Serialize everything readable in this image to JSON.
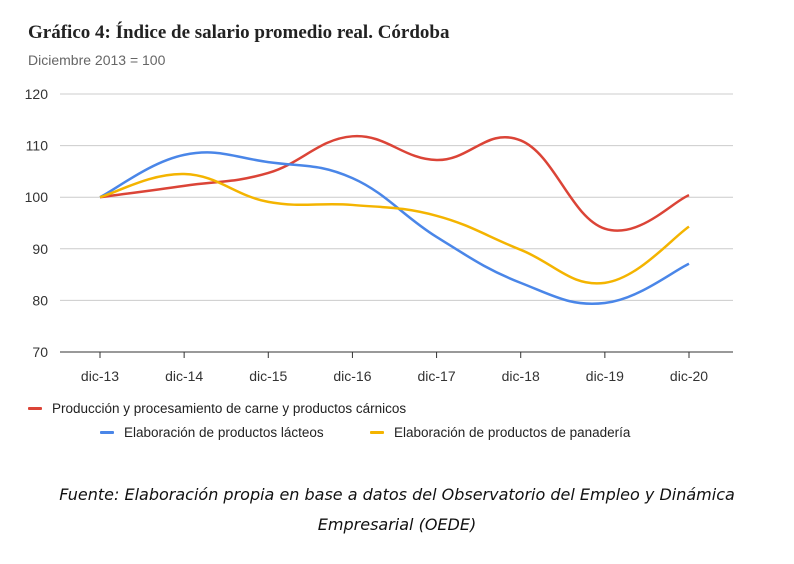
{
  "chart_data": {
    "type": "line",
    "title": "Gráfico 4: Índice de salario promedio real. Córdoba",
    "subtitle": "Diciembre 2013 = 100",
    "categories": [
      "dic-13",
      "dic-14",
      "dic-15",
      "dic-16",
      "dic-17",
      "dic-18",
      "dic-19",
      "dic-20"
    ],
    "ylim": [
      70,
      120
    ],
    "yticks": [
      70,
      80,
      90,
      100,
      110,
      120
    ],
    "grid": true,
    "smooth": true,
    "legend_position": "bottom",
    "series": [
      {
        "name": "Producción y procesamiento de carne y productos cárnicos",
        "color": "#db4437",
        "values": [
          100,
          102.2,
          104.7,
          111.8,
          107.2,
          111.0,
          93.9,
          100.4
        ]
      },
      {
        "name": "Elaboración de productos lácteos",
        "color": "#4a86e8",
        "values": [
          100,
          108.2,
          106.8,
          103.7,
          92.3,
          83.4,
          79.5,
          87.1
        ]
      },
      {
        "name": "Elaboración de productos de panadería",
        "color": "#f4b400",
        "values": [
          100,
          104.5,
          99.1,
          98.5,
          96.4,
          89.8,
          83.4,
          94.3
        ]
      }
    ]
  },
  "source": {
    "line1": "Fuente: Elaboración propia en base a datos del Observatorio del Empleo y Dinámica",
    "line2": "Empresarial (OEDE)"
  }
}
